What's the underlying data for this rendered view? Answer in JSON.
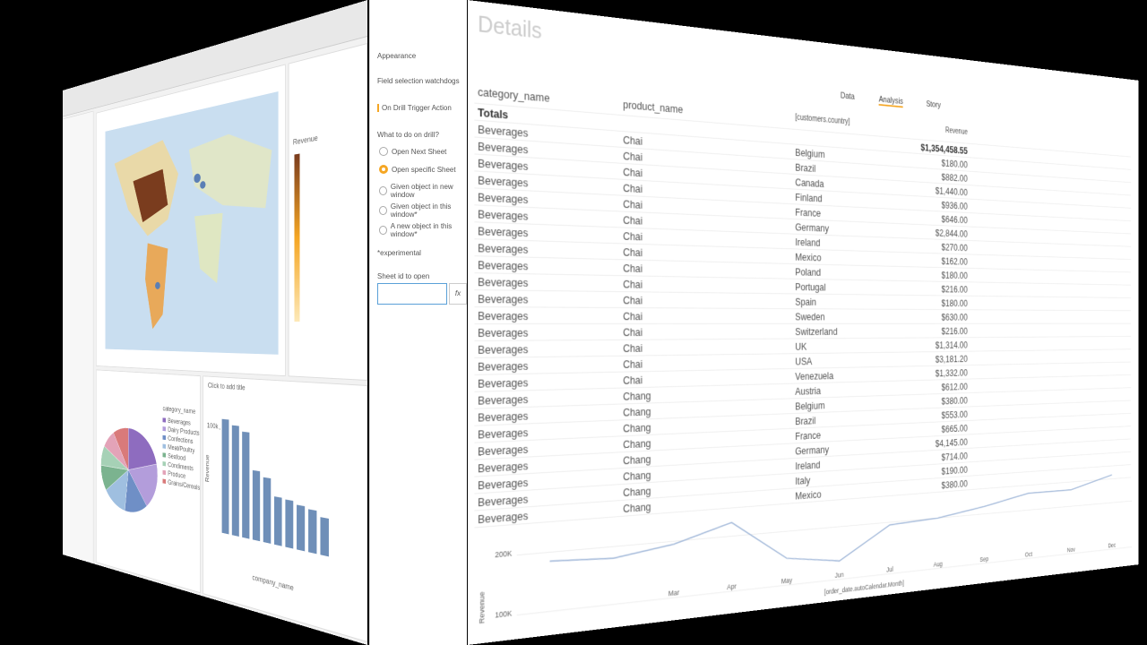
{
  "properties": {
    "items": [
      "Appearance",
      "Field selection watchdogs",
      "On Drill Trigger Action"
    ],
    "question": "What to do on drill?",
    "options": [
      "Open Next Sheet",
      "Open specific Sheet",
      "Given object in new window",
      "Given object in this window*",
      "A new object in this window*"
    ],
    "note": "*experimental",
    "sheet_id_label": "Sheet id to open",
    "fx": "fx"
  },
  "map": {
    "legend_title": "Revenue"
  },
  "details": {
    "title": "Details",
    "tabs": [
      "Data",
      "Analysis",
      "Story"
    ],
    "headers": [
      "category_name",
      "product_name",
      "[customers.country]",
      "Revenue"
    ],
    "totals_label": "Totals",
    "totals_revenue": "$1,354,458.55",
    "rows": [
      [
        "Beverages",
        "Chai",
        "Belgium",
        "$180.00"
      ],
      [
        "Beverages",
        "Chai",
        "Brazil",
        "$882.00"
      ],
      [
        "Beverages",
        "Chai",
        "Canada",
        "$1,440.00"
      ],
      [
        "Beverages",
        "Chai",
        "Finland",
        "$936.00"
      ],
      [
        "Beverages",
        "Chai",
        "France",
        "$646.00"
      ],
      [
        "Beverages",
        "Chai",
        "Germany",
        "$2,844.00"
      ],
      [
        "Beverages",
        "Chai",
        "Ireland",
        "$270.00"
      ],
      [
        "Beverages",
        "Chai",
        "Mexico",
        "$162.00"
      ],
      [
        "Beverages",
        "Chai",
        "Poland",
        "$180.00"
      ],
      [
        "Beverages",
        "Chai",
        "Portugal",
        "$216.00"
      ],
      [
        "Beverages",
        "Chai",
        "Spain",
        "$180.00"
      ],
      [
        "Beverages",
        "Chai",
        "Sweden",
        "$630.00"
      ],
      [
        "Beverages",
        "Chai",
        "Switzerland",
        "$216.00"
      ],
      [
        "Beverages",
        "Chai",
        "UK",
        "$1,314.00"
      ],
      [
        "Beverages",
        "Chai",
        "USA",
        "$3,181.20"
      ],
      [
        "Beverages",
        "Chai",
        "Venezuela",
        "$1,332.00"
      ],
      [
        "Beverages",
        "Chang",
        "Austria",
        "$612.00"
      ],
      [
        "Beverages",
        "Chang",
        "Belgium",
        "$380.00"
      ],
      [
        "Beverages",
        "Chang",
        "Brazil",
        "$553.00"
      ],
      [
        "Beverages",
        "Chang",
        "France",
        "$665.00"
      ],
      [
        "Beverages",
        "Chang",
        "Germany",
        "$4,145.00"
      ],
      [
        "Beverages",
        "Chang",
        "Ireland",
        "$714.00"
      ],
      [
        "Beverages",
        "Chang",
        "Italy",
        "$190.00"
      ],
      [
        "Beverages",
        "Chang",
        "Mexico",
        "$380.00"
      ]
    ]
  },
  "chart_data": [
    {
      "type": "pie",
      "legend_title": "category_name",
      "categories": [
        "Beverages",
        "Dairy Products",
        "Confections",
        "Meat/Poultry",
        "Seafood",
        "Condiments",
        "Produce",
        "Grains/Cereals"
      ],
      "values": [
        21,
        18,
        13,
        13,
        10,
        8,
        8,
        9
      ],
      "colors": [
        "#8e6cbf",
        "#b39ddb",
        "#6f8fc6",
        "#9fbfe0",
        "#7bb38f",
        "#a6d1b6",
        "#e3a3b8",
        "#d97a7a"
      ]
    },
    {
      "type": "bar",
      "title": "Click to add title",
      "x_label": "company_name",
      "y_label": "Revenue",
      "categories": [
        null,
        null,
        null,
        null,
        null,
        null,
        null,
        null,
        null,
        null
      ],
      "values": [
        110000,
        105000,
        100000,
        65000,
        60000,
        44000,
        43000,
        40000,
        38000,
        33000
      ],
      "color": "#6f8fb8",
      "ylim": [
        0,
        120000
      ],
      "yticks": [
        {
          "value": 100000,
          "label": "100k"
        }
      ]
    },
    {
      "type": "line",
      "y_label": "Revenue",
      "x_label": "[order_date.autoCalendar.Month]",
      "categories": [
        null,
        null,
        "Mar",
        "Apr",
        "May",
        "Jun",
        "Jul",
        "Aug",
        "Sep",
        "Oct",
        "Nov",
        "Dec"
      ],
      "values": [
        185000,
        180000,
        195000,
        225000,
        150000,
        135000,
        195000,
        200000,
        215000,
        235000,
        235000,
        260000
      ],
      "color": "#9fb6d8",
      "ylim": [
        60000,
        280000
      ],
      "yticks": [
        {
          "value": 100000,
          "label": "100K"
        },
        {
          "value": 200000,
          "label": "200K"
        }
      ]
    }
  ]
}
